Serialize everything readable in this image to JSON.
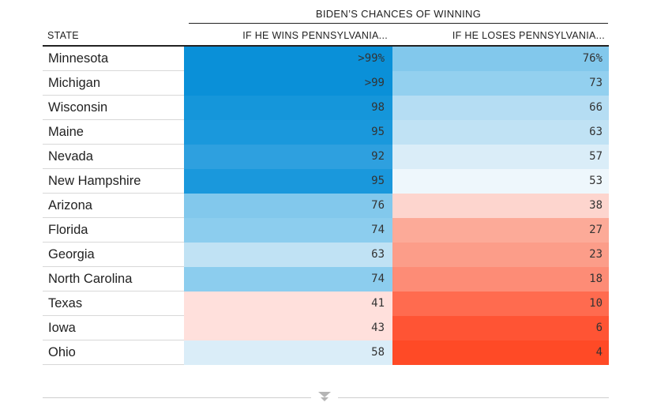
{
  "chart_data": {
    "type": "table",
    "super_header": "BIDEN’S CHANCES OF WINNING",
    "columns": [
      "STATE",
      "IF HE WINS PENNSYLVANIA...",
      "IF HE LOSES PENNSYLVANIA..."
    ],
    "rows": [
      {
        "state": "Minnesota",
        "win_label": ">99%",
        "lose_label": "76%",
        "win": 99,
        "lose": 76
      },
      {
        "state": "Michigan",
        "win_label": ">99",
        "lose_label": "73",
        "win": 99,
        "lose": 73
      },
      {
        "state": "Wisconsin",
        "win_label": "98",
        "lose_label": "66",
        "win": 98,
        "lose": 66
      },
      {
        "state": "Maine",
        "win_label": "95",
        "lose_label": "63",
        "win": 95,
        "lose": 63
      },
      {
        "state": "Nevada",
        "win_label": "92",
        "lose_label": "57",
        "win": 92,
        "lose": 57
      },
      {
        "state": "New Hampshire",
        "win_label": "95",
        "lose_label": "53",
        "win": 95,
        "lose": 53
      },
      {
        "state": "Arizona",
        "win_label": "76",
        "lose_label": "38",
        "win": 76,
        "lose": 38
      },
      {
        "state": "Florida",
        "win_label": "74",
        "lose_label": "27",
        "win": 74,
        "lose": 27
      },
      {
        "state": "Georgia",
        "win_label": "63",
        "lose_label": "23",
        "win": 63,
        "lose": 23
      },
      {
        "state": "North Carolina",
        "win_label": "74",
        "lose_label": "18",
        "win": 74,
        "lose": 18
      },
      {
        "state": "Texas",
        "win_label": "41",
        "lose_label": "10",
        "win": 41,
        "lose": 10
      },
      {
        "state": "Iowa",
        "win_label": "43",
        "lose_label": "6",
        "win": 43,
        "lose": 6
      },
      {
        "state": "Ohio",
        "win_label": "58",
        "lose_label": "4",
        "win": 58,
        "lose": 4
      }
    ]
  },
  "colors": {
    "win_high": "#0a8fd8",
    "win_mid": "#8fcdee",
    "win_light": "#c9e6f6",
    "win_faint": "#daedf8",
    "lean_red_faint": "#fde0db",
    "lose_red_light": "#fbbbad",
    "lose_red_mid": "#f9917d",
    "lose_red_strong": "#ff4a26"
  },
  "footer": {
    "expand_icon": "chevron-down-icon"
  }
}
